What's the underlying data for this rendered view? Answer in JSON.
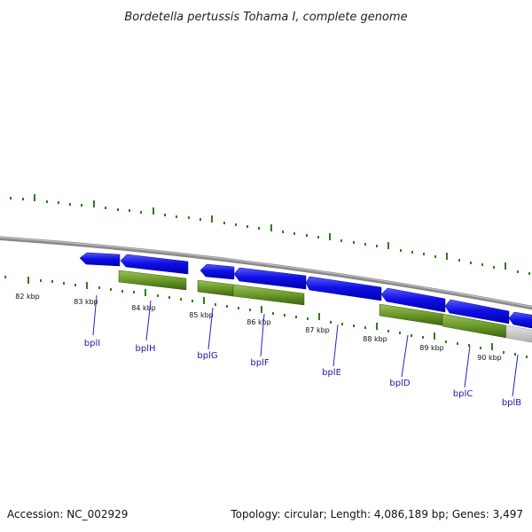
{
  "title": "Bordetella pertussis Tohama I, complete genome",
  "footer": {
    "accession": "Accession: NC_002929",
    "topology": "Topology: circular; Length: 4,086,189 bp; Genes: 3,497"
  },
  "colors": {
    "gene_forward": "#1717dd",
    "cds_green": "#5d8a1e",
    "backbone": "#808080",
    "tick_green": "#2e7d1c",
    "label_blue": "#1a1aa6"
  },
  "kbp_labels": [
    "82 kbp",
    "83 kbp",
    "84 kbp",
    "85 kbp",
    "86 kbp",
    "87 kbp",
    "88 kbp",
    "89 kbp",
    "90 kbp"
  ],
  "gene_labels": [
    "bplI",
    "bplH",
    "bplG",
    "bplF",
    "bplE",
    "bplD",
    "bplC",
    "bplB"
  ]
}
